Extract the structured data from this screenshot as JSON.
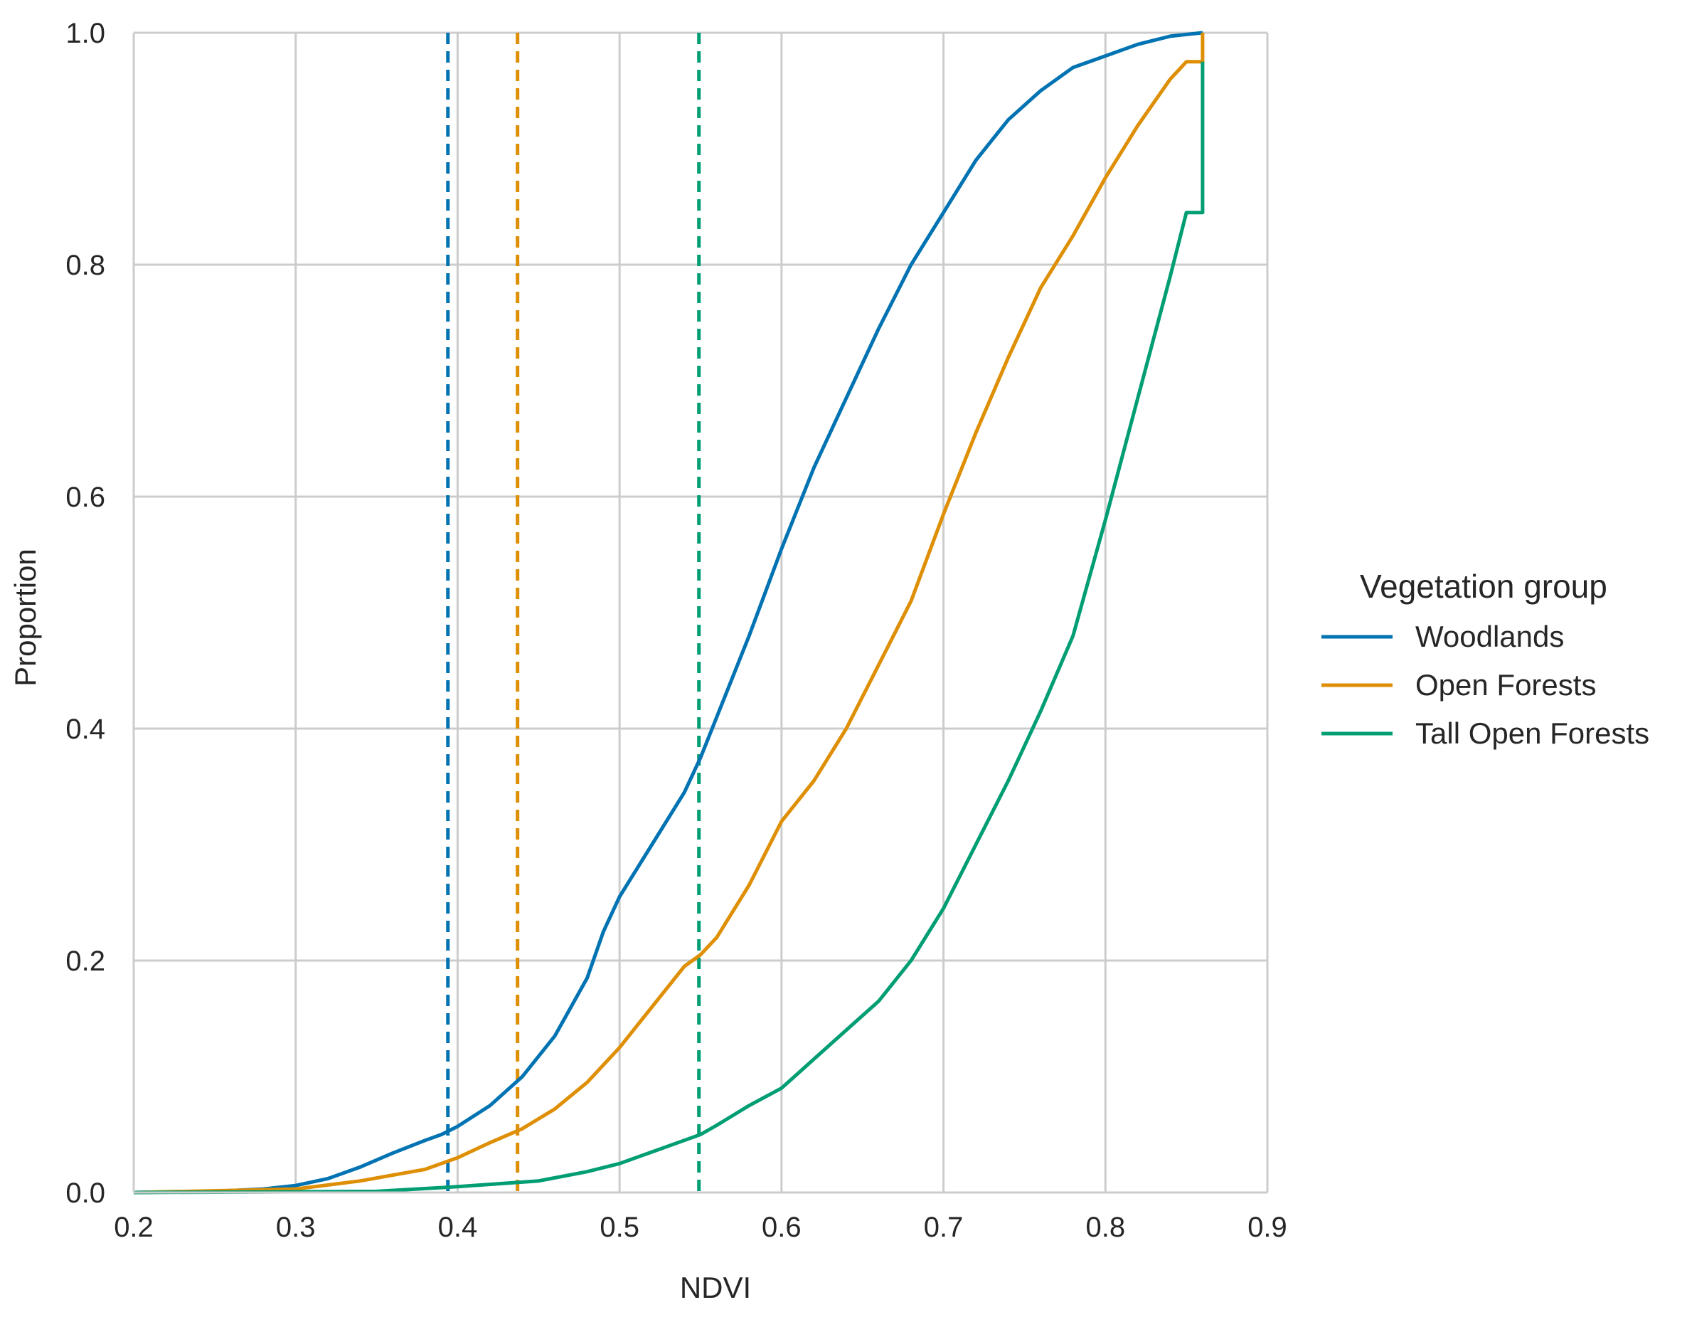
{
  "chart_data": {
    "type": "line",
    "xlabel": "NDVI",
    "ylabel": "Proportion",
    "xlim": [
      0.2,
      0.9
    ],
    "ylim": [
      0.0,
      1.0
    ],
    "x_ticks": [
      "0.2",
      "0.3",
      "0.4",
      "0.5",
      "0.6",
      "0.7",
      "0.8",
      "0.9"
    ],
    "y_ticks": [
      "0.0",
      "0.2",
      "0.4",
      "0.6",
      "0.8",
      "1.0"
    ],
    "grid": true,
    "legend": {
      "title": "Vegetation group",
      "placement": "right"
    },
    "series": [
      {
        "name": "Woodlands",
        "color": "#0173b2",
        "x": [
          0.2,
          0.25,
          0.28,
          0.3,
          0.32,
          0.34,
          0.36,
          0.38,
          0.39,
          0.4,
          0.42,
          0.44,
          0.46,
          0.48,
          0.49,
          0.5,
          0.52,
          0.54,
          0.55,
          0.56,
          0.58,
          0.6,
          0.62,
          0.64,
          0.66,
          0.68,
          0.7,
          0.72,
          0.74,
          0.76,
          0.78,
          0.8,
          0.82,
          0.84,
          0.86
        ],
        "values": [
          0.0,
          0.001,
          0.003,
          0.006,
          0.012,
          0.022,
          0.034,
          0.045,
          0.05,
          0.057,
          0.075,
          0.1,
          0.135,
          0.185,
          0.225,
          0.255,
          0.3,
          0.345,
          0.375,
          0.41,
          0.48,
          0.555,
          0.625,
          0.685,
          0.745,
          0.8,
          0.845,
          0.89,
          0.925,
          0.95,
          0.97,
          0.98,
          0.99,
          0.997,
          1.0
        ]
      },
      {
        "name": "Open Forests",
        "color": "#de8f05",
        "x": [
          0.2,
          0.3,
          0.34,
          0.38,
          0.4,
          0.42,
          0.44,
          0.46,
          0.48,
          0.5,
          0.52,
          0.54,
          0.55,
          0.56,
          0.58,
          0.6,
          0.62,
          0.64,
          0.66,
          0.68,
          0.7,
          0.72,
          0.74,
          0.76,
          0.78,
          0.8,
          0.82,
          0.84,
          0.85,
          0.86,
          0.86
        ],
        "values": [
          0.0,
          0.003,
          0.01,
          0.02,
          0.03,
          0.043,
          0.055,
          0.072,
          0.095,
          0.125,
          0.16,
          0.195,
          0.205,
          0.22,
          0.265,
          0.32,
          0.355,
          0.4,
          0.455,
          0.51,
          0.585,
          0.655,
          0.72,
          0.78,
          0.825,
          0.875,
          0.92,
          0.96,
          0.975,
          0.975,
          1.0
        ]
      },
      {
        "name": "Tall Open Forests",
        "color": "#029e73",
        "x": [
          0.2,
          0.35,
          0.4,
          0.45,
          0.48,
          0.5,
          0.52,
          0.54,
          0.55,
          0.56,
          0.58,
          0.6,
          0.62,
          0.64,
          0.66,
          0.68,
          0.7,
          0.72,
          0.74,
          0.76,
          0.78,
          0.8,
          0.82,
          0.84,
          0.85,
          0.86,
          0.86
        ],
        "values": [
          0.0,
          0.001,
          0.005,
          0.01,
          0.018,
          0.025,
          0.035,
          0.045,
          0.05,
          0.058,
          0.075,
          0.09,
          0.115,
          0.14,
          0.165,
          0.2,
          0.245,
          0.3,
          0.355,
          0.415,
          0.48,
          0.58,
          0.685,
          0.79,
          0.845,
          0.845,
          0.975
        ]
      }
    ],
    "vlines": [
      {
        "x": 0.394,
        "series": "Woodlands",
        "style": "dashed",
        "color": "#0173b2"
      },
      {
        "x": 0.437,
        "series": "Open Forests",
        "style": "dashed",
        "color": "#de8f05"
      },
      {
        "x": 0.549,
        "series": "Tall Open Forests",
        "style": "dashed",
        "color": "#029e73"
      }
    ]
  }
}
